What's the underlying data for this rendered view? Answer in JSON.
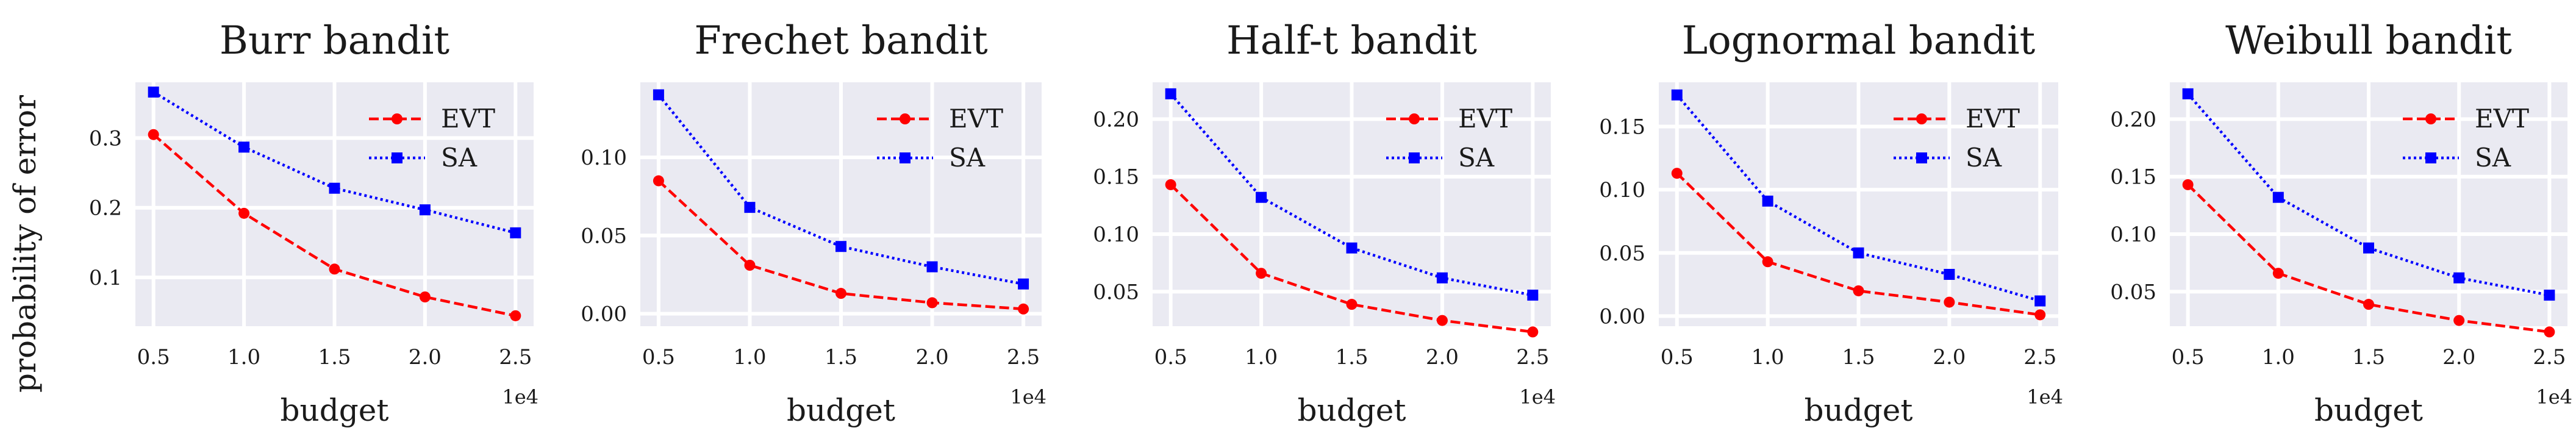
{
  "figure": {
    "ylabel": "probability of error",
    "series_colors": {
      "EVT": "#ff0000",
      "SA": "#0000ff"
    },
    "axes_bg": "#eaeaf2",
    "grid_color": "#ffffff"
  },
  "chart_data": [
    {
      "type": "line",
      "title": "Burr bandit",
      "xlabel": "budget",
      "x_offset_label": "1e4",
      "x": [
        0.5,
        1.0,
        1.5,
        2.0,
        2.5
      ],
      "xticks": [
        "0.5",
        "1.0",
        "1.5",
        "2.0",
        "2.5"
      ],
      "xlim": [
        0.4,
        2.6
      ],
      "ylim": [
        0.03,
        0.38
      ],
      "yticks": [
        0.1,
        0.2,
        0.3
      ],
      "ytick_labels": [
        "0.1",
        "0.2",
        "0.3"
      ],
      "grid": true,
      "legend": "upper right",
      "series": [
        {
          "name": "EVT",
          "values": [
            0.305,
            0.192,
            0.112,
            0.072,
            0.045
          ]
        },
        {
          "name": "SA",
          "values": [
            0.366,
            0.287,
            0.228,
            0.197,
            0.164
          ]
        }
      ]
    },
    {
      "type": "line",
      "title": "Frechet bandit",
      "xlabel": "budget",
      "x_offset_label": "1e4",
      "x": [
        0.5,
        1.0,
        1.5,
        2.0,
        2.5
      ],
      "xticks": [
        "0.5",
        "1.0",
        "1.5",
        "2.0",
        "2.5"
      ],
      "xlim": [
        0.4,
        2.6
      ],
      "ylim": [
        -0.008,
        0.148
      ],
      "yticks": [
        0.0,
        0.05,
        0.1
      ],
      "ytick_labels": [
        "0.00",
        "0.05",
        "0.10"
      ],
      "grid": true,
      "legend": "upper right",
      "series": [
        {
          "name": "EVT",
          "values": [
            0.085,
            0.031,
            0.013,
            0.007,
            0.003
          ]
        },
        {
          "name": "SA",
          "values": [
            0.14,
            0.068,
            0.043,
            0.03,
            0.019
          ]
        }
      ]
    },
    {
      "type": "line",
      "title": "Half-t bandit",
      "xlabel": "budget",
      "x_offset_label": "1e4",
      "x": [
        0.5,
        1.0,
        1.5,
        2.0,
        2.5
      ],
      "xticks": [
        "0.5",
        "1.0",
        "1.5",
        "2.0",
        "2.5"
      ],
      "xlim": [
        0.4,
        2.6
      ],
      "ylim": [
        0.02,
        0.232
      ],
      "yticks": [
        0.05,
        0.1,
        0.15,
        0.2
      ],
      "ytick_labels": [
        "0.05",
        "0.10",
        "0.15",
        "0.20"
      ],
      "grid": true,
      "legend": "upper right",
      "series": [
        {
          "name": "EVT",
          "values": [
            0.143,
            0.066,
            0.039,
            0.025,
            0.015
          ]
        },
        {
          "name": "SA",
          "values": [
            0.222,
            0.132,
            0.088,
            0.062,
            0.047
          ]
        }
      ]
    },
    {
      "type": "line",
      "title": "Lognormal bandit",
      "xlabel": "budget",
      "x_offset_label": "1e4",
      "x": [
        0.5,
        1.0,
        1.5,
        2.0,
        2.5
      ],
      "xticks": [
        "0.5",
        "1.0",
        "1.5",
        "2.0",
        "2.5"
      ],
      "xlim": [
        0.4,
        2.6
      ],
      "ylim": [
        -0.008,
        0.185
      ],
      "yticks": [
        0.0,
        0.05,
        0.1,
        0.15
      ],
      "ytick_labels": [
        "0.00",
        "0.05",
        "0.10",
        "0.15"
      ],
      "grid": true,
      "legend": "upper right",
      "series": [
        {
          "name": "EVT",
          "values": [
            0.113,
            0.043,
            0.02,
            0.011,
            0.001
          ]
        },
        {
          "name": "SA",
          "values": [
            0.175,
            0.091,
            0.05,
            0.033,
            0.012
          ]
        }
      ]
    },
    {
      "type": "line",
      "title": "Weibull bandit",
      "xlabel": "budget",
      "x_offset_label": "1e4",
      "x": [
        0.5,
        1.0,
        1.5,
        2.0,
        2.5
      ],
      "xticks": [
        "0.5",
        "1.0",
        "1.5",
        "2.0",
        "2.5"
      ],
      "xlim": [
        0.4,
        2.6
      ],
      "ylim": [
        0.02,
        0.232
      ],
      "yticks": [
        0.05,
        0.1,
        0.15,
        0.2
      ],
      "ytick_labels": [
        "0.05",
        "0.10",
        "0.15",
        "0.20"
      ],
      "grid": true,
      "legend": "upper right",
      "series": [
        {
          "name": "EVT",
          "values": [
            0.143,
            0.066,
            0.039,
            0.025,
            0.015
          ]
        },
        {
          "name": "SA",
          "values": [
            0.222,
            0.132,
            0.088,
            0.062,
            0.047
          ]
        }
      ]
    }
  ]
}
